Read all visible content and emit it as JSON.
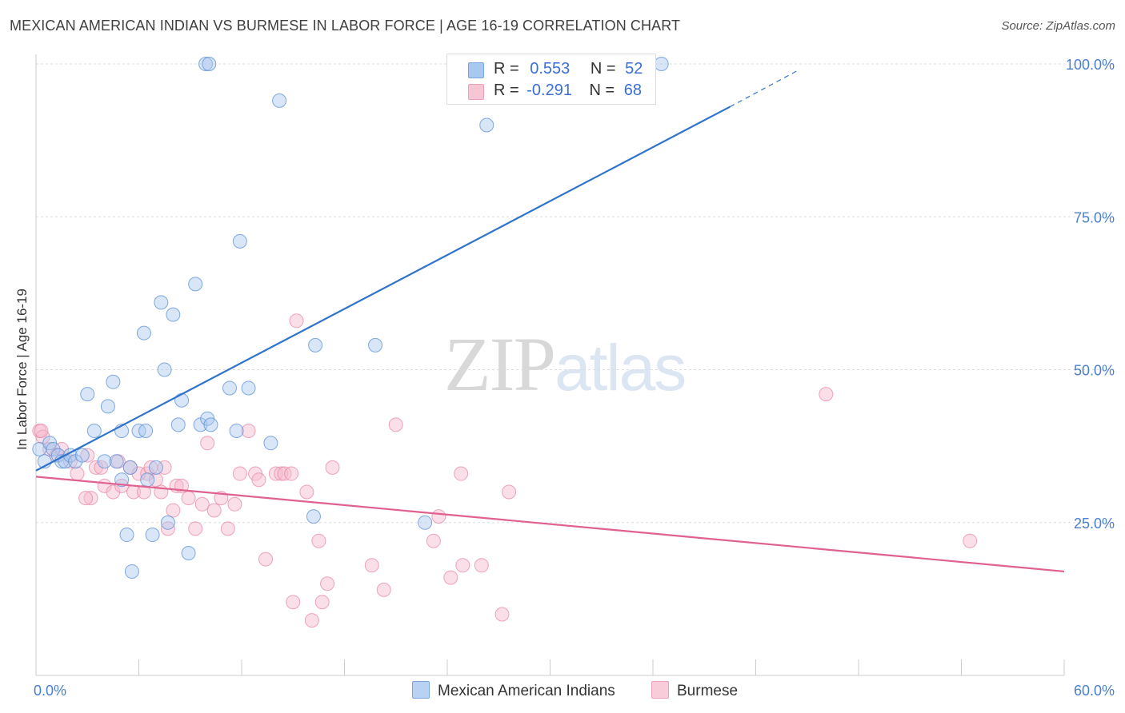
{
  "header": {
    "title": "MEXICAN AMERICAN INDIAN VS BURMESE IN LABOR FORCE | AGE 16-19 CORRELATION CHART",
    "source": "Source: ZipAtlas.com"
  },
  "watermark": {
    "part1": "ZIP",
    "part2": "atlas"
  },
  "legend": {
    "rows": [
      {
        "r_label": "R =",
        "r_value": "0.553",
        "n_label": "N =",
        "n_value": "52",
        "color": "#a9c8f0"
      },
      {
        "r_label": "R =",
        "r_value": "-0.291",
        "n_label": "N =",
        "n_value": "68",
        "color": "#f7b9cb"
      }
    ]
  },
  "bottom_legend": {
    "series1": "Mexican American Indians",
    "series2": "Burmese"
  },
  "colors": {
    "blue_fill": "#a9c8f0",
    "blue_stroke": "#5b8fd6",
    "blue_line": "#2f73cc",
    "pink_fill": "#f7b9cb",
    "pink_stroke": "#e68aa6",
    "pink_line": "#e0608f",
    "axis_text": "#4a7fd0",
    "grid": "#dddddd"
  },
  "chart_data": {
    "type": "scatter",
    "title": "MEXICAN AMERICAN INDIAN VS BURMESE IN LABOR FORCE | AGE 16-19 CORRELATION CHART",
    "xlabel": "",
    "ylabel": "In Labor Force | Age 16-19",
    "xlim": [
      0,
      60
    ],
    "ylim": [
      0,
      100
    ],
    "x_tick_labels": [
      "0.0%",
      "60.0%"
    ],
    "y_tick_labels": [
      "25.0%",
      "50.0%",
      "75.0%",
      "100.0%"
    ],
    "y_tick_values": [
      25,
      50,
      75,
      100
    ],
    "x_minor_ticks": [
      0,
      6,
      12,
      18,
      24,
      30,
      36,
      42,
      48,
      54,
      60
    ],
    "grid": "horizontal dashed",
    "legend_position": "top-center",
    "series": [
      {
        "name": "Mexican American Indians",
        "color": "#a9c8f0",
        "trend": {
          "x0": 0,
          "y0": 33.5,
          "x1": 40.5,
          "y1": 93.0,
          "dash_to_x": 44.5,
          "dash_to_y": 99.0
        },
        "points": [
          [
            0.2,
            37
          ],
          [
            0.5,
            35
          ],
          [
            0.8,
            38
          ],
          [
            1.0,
            37
          ],
          [
            1.3,
            36
          ],
          [
            1.5,
            35
          ],
          [
            1.7,
            35
          ],
          [
            2.0,
            36
          ],
          [
            2.3,
            35
          ],
          [
            2.7,
            36
          ],
          [
            3.0,
            46
          ],
          [
            3.4,
            40
          ],
          [
            4.0,
            35
          ],
          [
            4.2,
            44
          ],
          [
            4.5,
            48
          ],
          [
            4.7,
            35
          ],
          [
            5.0,
            32
          ],
          [
            5.0,
            40
          ],
          [
            5.3,
            23
          ],
          [
            5.5,
            34
          ],
          [
            5.6,
            17
          ],
          [
            6.0,
            40
          ],
          [
            6.3,
            56
          ],
          [
            6.4,
            40
          ],
          [
            6.5,
            32
          ],
          [
            6.8,
            23
          ],
          [
            7.0,
            34
          ],
          [
            7.3,
            61
          ],
          [
            7.5,
            50
          ],
          [
            7.7,
            25
          ],
          [
            8.0,
            59
          ],
          [
            8.3,
            41
          ],
          [
            8.5,
            45
          ],
          [
            8.9,
            20
          ],
          [
            9.3,
            64
          ],
          [
            9.6,
            41
          ],
          [
            10.0,
            42
          ],
          [
            10.2,
            41
          ],
          [
            11.3,
            47
          ],
          [
            11.7,
            40
          ],
          [
            11.9,
            71
          ],
          [
            12.4,
            47
          ],
          [
            13.7,
            38
          ],
          [
            14.2,
            94
          ],
          [
            16.2,
            26
          ],
          [
            16.3,
            54
          ],
          [
            19.8,
            54
          ],
          [
            22.7,
            25
          ],
          [
            26.3,
            90
          ],
          [
            9.9,
            100
          ],
          [
            36.5,
            100
          ],
          [
            10.1,
            100
          ]
        ]
      },
      {
        "name": "Burmese",
        "color": "#f7b9cb",
        "trend": {
          "x0": 0,
          "y0": 32.5,
          "x1": 60,
          "y1": 17.0
        },
        "points": [
          [
            0.2,
            40
          ],
          [
            0.4,
            39
          ],
          [
            0.8,
            37
          ],
          [
            1.2,
            36
          ],
          [
            1.5,
            37
          ],
          [
            2.0,
            35
          ],
          [
            2.4,
            33
          ],
          [
            3.0,
            36
          ],
          [
            3.2,
            29
          ],
          [
            3.5,
            34
          ],
          [
            3.8,
            34
          ],
          [
            4.0,
            31
          ],
          [
            4.5,
            30
          ],
          [
            4.8,
            35
          ],
          [
            5.0,
            31
          ],
          [
            5.5,
            34
          ],
          [
            5.7,
            30
          ],
          [
            6.0,
            33
          ],
          [
            6.3,
            30
          ],
          [
            6.5,
            33
          ],
          [
            6.7,
            34
          ],
          [
            7.0,
            32
          ],
          [
            7.3,
            30
          ],
          [
            7.5,
            34
          ],
          [
            7.7,
            24
          ],
          [
            8.0,
            27
          ],
          [
            8.2,
            31
          ],
          [
            8.5,
            31
          ],
          [
            8.9,
            29
          ],
          [
            9.3,
            24
          ],
          [
            9.7,
            28
          ],
          [
            10.0,
            38
          ],
          [
            10.4,
            27
          ],
          [
            10.8,
            29
          ],
          [
            11.2,
            24
          ],
          [
            11.6,
            28
          ],
          [
            11.9,
            33
          ],
          [
            12.4,
            40
          ],
          [
            12.8,
            33
          ],
          [
            13.0,
            32
          ],
          [
            13.4,
            19
          ],
          [
            14.0,
            33
          ],
          [
            14.3,
            33
          ],
          [
            14.5,
            33
          ],
          [
            14.9,
            33
          ],
          [
            15.0,
            12
          ],
          [
            15.2,
            58
          ],
          [
            15.8,
            30
          ],
          [
            16.1,
            9
          ],
          [
            16.5,
            22
          ],
          [
            16.7,
            12
          ],
          [
            17.0,
            15
          ],
          [
            17.3,
            34
          ],
          [
            19.6,
            18
          ],
          [
            20.3,
            14
          ],
          [
            21.0,
            41
          ],
          [
            23.2,
            22
          ],
          [
            23.5,
            26
          ],
          [
            24.2,
            16
          ],
          [
            24.8,
            33
          ],
          [
            24.9,
            18
          ],
          [
            26.0,
            18
          ],
          [
            27.2,
            10
          ],
          [
            27.6,
            30
          ],
          [
            46.1,
            46
          ],
          [
            54.5,
            22
          ],
          [
            0.3,
            40
          ],
          [
            2.9,
            29
          ]
        ]
      }
    ]
  }
}
